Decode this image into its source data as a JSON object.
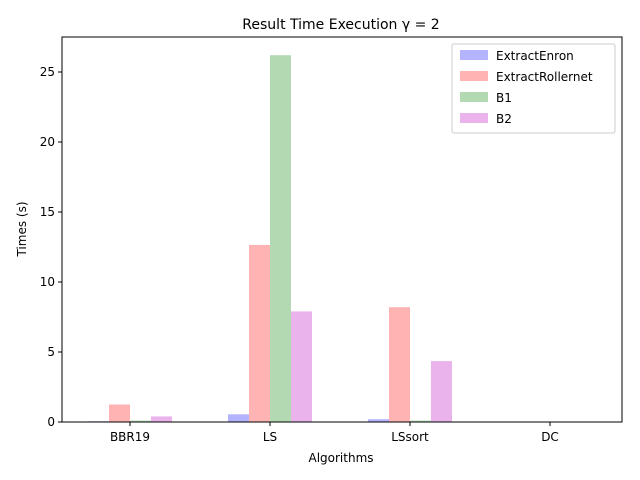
{
  "chart_data": {
    "type": "bar",
    "title": "Result Time Execution  γ = 2",
    "xlabel": "Algorithms",
    "ylabel": "Times (s)",
    "categories": [
      "BBR19",
      "LS",
      "LSsort",
      "DC"
    ],
    "yticks": [
      0,
      5,
      10,
      15,
      20,
      25
    ],
    "ylim": [
      0,
      27.5
    ],
    "grid": false,
    "legend_position": "top-right",
    "series": [
      {
        "name": "ExtractEnron",
        "color": "#b3b3ff",
        "values": [
          0.05,
          0.55,
          0.2,
          0.02
        ]
      },
      {
        "name": "ExtractRollernet",
        "color": "#ffb3b3",
        "values": [
          1.25,
          12.65,
          8.2,
          0.03
        ]
      },
      {
        "name": "B1",
        "color": "#b3d9b3",
        "values": [
          0.1,
          26.2,
          0.1,
          0.02
        ]
      },
      {
        "name": "B2",
        "color": "#ebb3eb",
        "values": [
          0.4,
          7.9,
          4.35,
          0.02
        ]
      }
    ]
  }
}
